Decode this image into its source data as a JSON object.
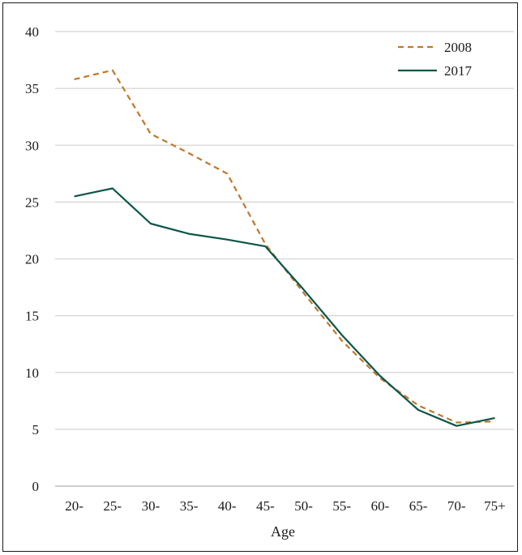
{
  "chart_data": {
    "type": "line",
    "title": "",
    "xlabel": "Age",
    "ylabel": "",
    "categories": [
      "20-",
      "25-",
      "30-",
      "35-",
      "40-",
      "45-",
      "50-",
      "55-",
      "60-",
      "65-",
      "70-",
      "75+"
    ],
    "ylim": [
      0,
      40
    ],
    "yticks": [
      0,
      5,
      10,
      15,
      20,
      25,
      30,
      35,
      40
    ],
    "grid": true,
    "legend": "top-right",
    "series": [
      {
        "name": "2008",
        "color": "#c0782a",
        "style": "dashed",
        "values": [
          35.8,
          36.6,
          31.0,
          29.3,
          27.5,
          21.3,
          17.0,
          12.8,
          9.5,
          7.1,
          5.6,
          5.7
        ]
      },
      {
        "name": "2017",
        "color": "#0c5648",
        "style": "solid",
        "values": [
          25.5,
          26.2,
          23.1,
          22.2,
          21.7,
          21.1,
          17.3,
          13.3,
          9.7,
          6.7,
          5.3,
          6.0
        ]
      }
    ]
  }
}
